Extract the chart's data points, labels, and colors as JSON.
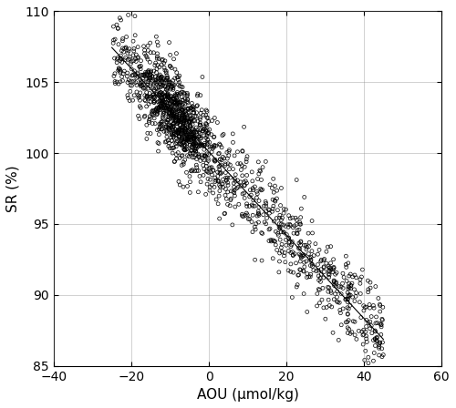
{
  "title": "",
  "xlabel": "AOU (μmol/kg)",
  "ylabel": "SR (%)",
  "xlim": [
    -40,
    60
  ],
  "ylim": [
    85,
    110
  ],
  "xticks": [
    -40,
    -20,
    0,
    20,
    40,
    60
  ],
  "yticks": [
    85,
    90,
    95,
    100,
    105,
    110
  ],
  "slope": -0.294,
  "intercept": 100.093,
  "line_x_start": -25,
  "line_x_end": 45,
  "n_points": 1549,
  "scatter_color": "black",
  "scatter_marker": "o",
  "scatter_size": 8,
  "line_color": "black",
  "line_width": 0.8,
  "grid": true,
  "background_color": "#ffffff",
  "seed": 42,
  "noise_std": 1.5
}
